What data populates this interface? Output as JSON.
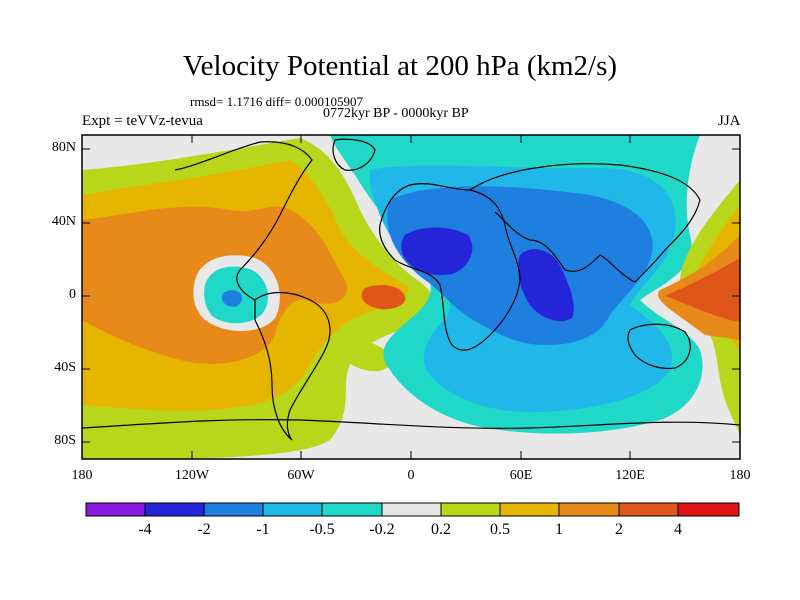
{
  "title": "Velocity Potential at 200 hPa (km2/s)",
  "stats": "rmsd= 1.1716 diff= 0.000105907",
  "period": "0772kyr BP - 0000kyr BP",
  "experiment": "Expt = teVVz-tevua",
  "season": "JJA",
  "y_axis_labels": [
    "80N",
    "40N",
    "0",
    "40S",
    "80S"
  ],
  "x_axis_labels": [
    "180",
    "120W",
    "60W",
    "0",
    "60E",
    "120E",
    "180"
  ],
  "colorbar": {
    "labels": [
      "-4",
      "-2",
      "-1",
      "-0.5",
      "-0.2",
      "0.2",
      "0.5",
      "1",
      "2",
      "4"
    ],
    "colors": [
      "#8b1adf",
      "#2424d8",
      "#1f7fe0",
      "#1fb8e8",
      "#1fd8c8",
      "#e8e8e8",
      "#b8d61a",
      "#e6b500",
      "#e88a1a",
      "#e0561a",
      "#e01414"
    ]
  },
  "field_colors": {
    "background": "#e8e8e8",
    "positive_05": "#b8d61a",
    "positive_1": "#e6b500",
    "positive_2": "#e88a1a",
    "positive_4": "#e0561a",
    "negative_02": "#1fd8c8",
    "negative_05": "#1fb8e8",
    "negative_1": "#1f7fe0",
    "negative_2": "#2424d8"
  }
}
